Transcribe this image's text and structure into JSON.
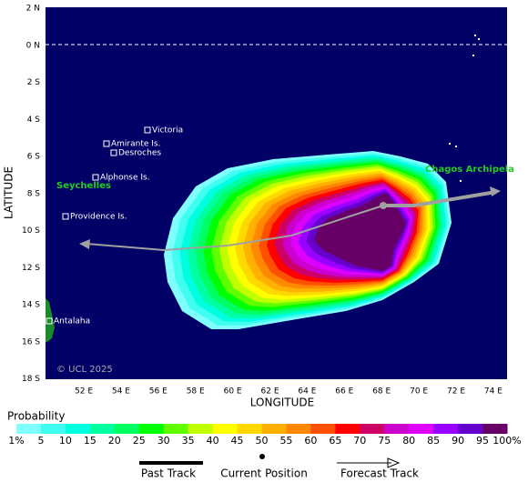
{
  "map": {
    "lat_labels": [
      "2 N",
      "0 N",
      "2 S",
      "4 S",
      "6 S",
      "8 S",
      "10 S",
      "12 S",
      "14 S",
      "16 S",
      "18 S"
    ],
    "lon_labels": [
      "52 E",
      "54 E",
      "56 E",
      "58 E",
      "60 E",
      "62 E",
      "64 E",
      "66 E",
      "68 E",
      "70 E",
      "72 E",
      "74 E"
    ],
    "axis_labels": {
      "y": "LATITUDE",
      "x": "LONGITUDE"
    },
    "places": [
      "Victoria",
      "Amirante Is.",
      "Desroches",
      "Alphonse Is.",
      "Providence Is.",
      "Antalaha"
    ],
    "regions": [
      "Seychelles",
      "Chagos Archipela"
    ],
    "copyright": "© UCL 2025"
  },
  "legend": {
    "title": "Probability",
    "labels": [
      "1%",
      "5",
      "10",
      "15",
      "20",
      "25",
      "30",
      "35",
      "40",
      "45",
      "50",
      "55",
      "60",
      "65",
      "70",
      "75",
      "80",
      "85",
      "90",
      "95",
      "100%"
    ],
    "colors": [
      "#80ffff",
      "#40fff0",
      "#00ffe0",
      "#00ffa0",
      "#00ff60",
      "#00ff00",
      "#60ff00",
      "#c0ff00",
      "#ffff00",
      "#ffd800",
      "#ffb000",
      "#ff8800",
      "#ff5000",
      "#ff0000",
      "#cc0066",
      "#cc00cc",
      "#dd00ff",
      "#9900ff",
      "#6600cc",
      "#660066"
    ],
    "tracks": [
      "Past Track",
      "Current Position",
      "Forecast Track"
    ]
  }
}
